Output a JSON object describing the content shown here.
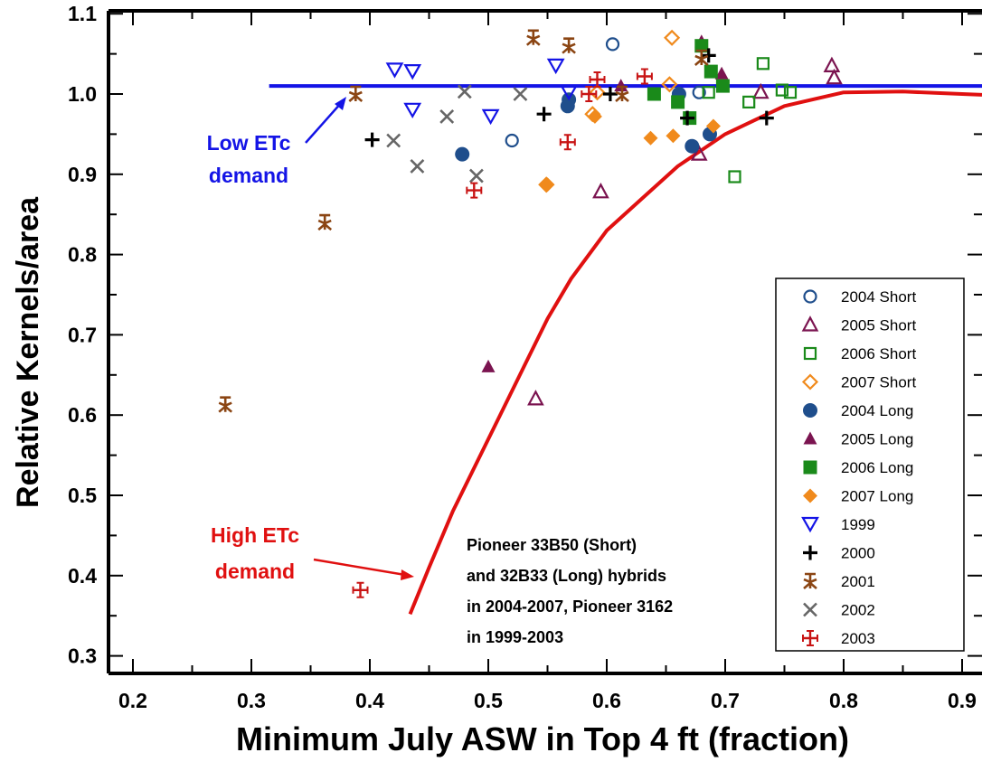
{
  "chart_data": {
    "type": "scatter",
    "xlabel": "Minimum July ASW in Top 4 ft (fraction)",
    "ylabel": "Relative Kernels/area",
    "xlim": [
      0.17,
      0.92
    ],
    "ylim": [
      0.29,
      1.11
    ],
    "x_ticks": [
      "0.2",
      "0.3",
      "0.4",
      "0.5",
      "0.6",
      "0.7",
      "0.8",
      "0.9"
    ],
    "y_ticks": [
      "0.3",
      "0.4",
      "0.5",
      "0.6",
      "0.7",
      "0.8",
      "0.9",
      "1.0",
      "1.1"
    ],
    "grid": false,
    "legend_position": "lower-right",
    "series": [
      {
        "name": "2004 Short",
        "marker": "circle-open",
        "color": "#1f4e8c",
        "points": [
          [
            0.605,
            1.062
          ],
          [
            0.52,
            0.942
          ],
          [
            0.678,
            1.002
          ]
        ]
      },
      {
        "name": "2005 Short",
        "marker": "triangle-open",
        "color": "#7b1450",
        "points": [
          [
            0.79,
            1.035
          ],
          [
            0.792,
            1.02
          ],
          [
            0.73,
            1.002
          ],
          [
            0.678,
            0.925
          ],
          [
            0.595,
            0.878
          ],
          [
            0.54,
            0.62
          ]
        ]
      },
      {
        "name": "2006 Short",
        "marker": "square-open",
        "color": "#1a8a1a",
        "points": [
          [
            0.732,
            1.038
          ],
          [
            0.686,
            1.002
          ],
          [
            0.72,
            0.99
          ],
          [
            0.748,
            1.005
          ],
          [
            0.755,
            1.002
          ],
          [
            0.708,
            0.897
          ]
        ]
      },
      {
        "name": "2007 Short",
        "marker": "diamond-open",
        "color": "#f08a1c",
        "points": [
          [
            0.655,
            1.07
          ],
          [
            0.653,
            1.012
          ],
          [
            0.592,
            1.002
          ],
          [
            0.588,
            0.975
          ],
          [
            0.549,
            0.887
          ]
        ]
      },
      {
        "name": "2004 Long",
        "marker": "circle",
        "color": "#1f4e8c",
        "points": [
          [
            0.568,
            0.993
          ],
          [
            0.567,
            0.985
          ],
          [
            0.661,
            1.0
          ],
          [
            0.478,
            0.925
          ],
          [
            0.672,
            0.935
          ],
          [
            0.687,
            0.95
          ]
        ]
      },
      {
        "name": "2005 Long",
        "marker": "triangle",
        "color": "#7b1450",
        "points": [
          [
            0.68,
            1.065
          ],
          [
            0.697,
            1.025
          ],
          [
            0.5,
            0.66
          ],
          [
            0.612,
            1.01
          ]
        ]
      },
      {
        "name": "2006 Long",
        "marker": "square",
        "color": "#1a8a1a",
        "points": [
          [
            0.68,
            1.06
          ],
          [
            0.688,
            1.028
          ],
          [
            0.64,
            1.0
          ],
          [
            0.66,
            0.99
          ],
          [
            0.698,
            1.01
          ],
          [
            0.67,
            0.97
          ]
        ]
      },
      {
        "name": "2007 Long",
        "marker": "diamond",
        "color": "#f08a1c",
        "points": [
          [
            0.55,
            0.887
          ],
          [
            0.59,
            0.972
          ],
          [
            0.637,
            0.945
          ],
          [
            0.656,
            0.948
          ],
          [
            0.69,
            0.96
          ]
        ]
      },
      {
        "name": "1999",
        "marker": "triangle-down-open",
        "color": "#1414e6",
        "points": [
          [
            0.421,
            1.03
          ],
          [
            0.436,
            1.028
          ],
          [
            0.557,
            1.035
          ],
          [
            0.436,
            0.98
          ],
          [
            0.502,
            0.972
          ],
          [
            0.568,
            1.002
          ]
        ]
      },
      {
        "name": "2000",
        "marker": "plus",
        "color": "#000000",
        "points": [
          [
            0.402,
            0.943
          ],
          [
            0.547,
            0.975
          ],
          [
            0.603,
            1.0
          ],
          [
            0.668,
            0.97
          ],
          [
            0.686,
            1.048
          ],
          [
            0.735,
            0.97
          ]
        ]
      },
      {
        "name": "2001",
        "marker": "star",
        "color": "#8b4513",
        "points": [
          [
            0.538,
            1.07
          ],
          [
            0.568,
            1.06
          ],
          [
            0.388,
            1.0
          ],
          [
            0.362,
            0.84
          ],
          [
            0.278,
            0.613
          ],
          [
            0.613,
            1.0
          ],
          [
            0.68,
            1.045
          ]
        ]
      },
      {
        "name": "2002",
        "marker": "x",
        "color": "#666666",
        "points": [
          [
            0.42,
            0.942
          ],
          [
            0.44,
            0.91
          ],
          [
            0.465,
            0.972
          ],
          [
            0.48,
            1.003
          ],
          [
            0.49,
            0.898
          ],
          [
            0.527,
            1.0
          ]
        ]
      },
      {
        "name": "2003",
        "marker": "cross-bar",
        "color": "#c81414",
        "points": [
          [
            0.592,
            1.018
          ],
          [
            0.632,
            1.022
          ],
          [
            0.585,
            1.0
          ],
          [
            0.567,
            0.94
          ],
          [
            0.488,
            0.88
          ],
          [
            0.392,
            0.382
          ]
        ]
      }
    ],
    "lines": [
      {
        "label": "Low ETc demand",
        "color": "#1414e6",
        "type": "horizontal",
        "y": 1.01,
        "x_start": 0.315,
        "x_end": 0.92
      },
      {
        "label": "High ETc demand",
        "color": "#e01010",
        "type": "curve",
        "points": [
          [
            0.434,
            0.352
          ],
          [
            0.45,
            0.41
          ],
          [
            0.47,
            0.48
          ],
          [
            0.49,
            0.54
          ],
          [
            0.51,
            0.6
          ],
          [
            0.53,
            0.66
          ],
          [
            0.55,
            0.72
          ],
          [
            0.57,
            0.77
          ],
          [
            0.6,
            0.83
          ],
          [
            0.63,
            0.87
          ],
          [
            0.66,
            0.91
          ],
          [
            0.7,
            0.95
          ],
          [
            0.75,
            0.985
          ],
          [
            0.8,
            1.002
          ],
          [
            0.85,
            1.003
          ],
          [
            0.9,
            1.0
          ],
          [
            0.92,
            0.999
          ]
        ]
      }
    ],
    "annotations": [
      {
        "text_lines": [
          "Low ETc",
          "demand"
        ],
        "color": "#1414e6"
      },
      {
        "text_lines": [
          "High  ETc",
          "demand"
        ],
        "color": "#e01010"
      },
      {
        "text_lines": [
          "Pioneer 33B50 (Short)",
          "and 32B33 (Long) hybrids",
          "in 2004-2007, Pioneer 3162",
          "in 1999-2003"
        ],
        "color": "#000000"
      }
    ]
  }
}
